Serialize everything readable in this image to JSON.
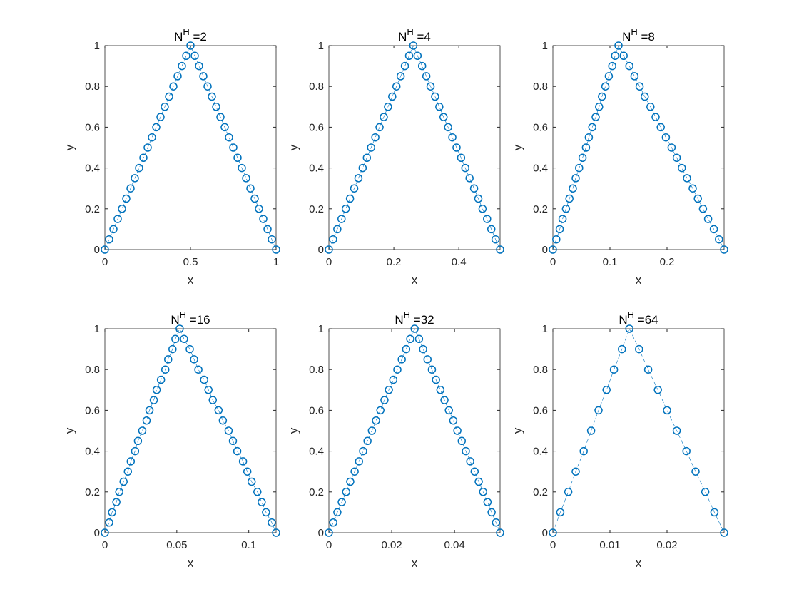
{
  "chart_data": [
    {
      "type": "line",
      "title": [
        "N",
        "H",
        " =2"
      ],
      "xlabel": "x",
      "ylabel": "y",
      "color": "#0072bd",
      "x": [
        0,
        0.025,
        0.05,
        0.075,
        0.1,
        0.125,
        0.15,
        0.175,
        0.2,
        0.225,
        0.25,
        0.275,
        0.3,
        0.325,
        0.35,
        0.375,
        0.4,
        0.425,
        0.45,
        0.475,
        0.5,
        0.525,
        0.55,
        0.575,
        0.6,
        0.625,
        0.65,
        0.675,
        0.7,
        0.725,
        0.75,
        0.775,
        0.8,
        0.825,
        0.85,
        0.875,
        0.9,
        0.925,
        0.95,
        0.975,
        1
      ],
      "values": [
        0,
        0.05,
        0.1,
        0.15,
        0.2,
        0.25,
        0.3,
        0.35,
        0.4,
        0.45,
        0.5,
        0.55,
        0.6,
        0.65,
        0.7,
        0.75,
        0.8,
        0.85,
        0.9,
        0.95,
        1,
        0.95,
        0.9,
        0.85,
        0.8,
        0.75,
        0.7,
        0.65,
        0.6,
        0.55,
        0.5,
        0.45,
        0.4,
        0.35,
        0.3,
        0.25,
        0.2,
        0.15,
        0.1,
        0.05,
        0
      ],
      "xlim": [
        0,
        1
      ],
      "ylim": [
        0,
        1
      ],
      "xticks": [
        0,
        0.5,
        1
      ],
      "yticks": [
        0,
        0.2,
        0.4,
        0.6,
        0.8,
        1
      ]
    },
    {
      "type": "line",
      "title": [
        "N",
        "H",
        " =4"
      ],
      "xlabel": "x",
      "ylabel": "y",
      "color": "#0072bd",
      "x": [
        0,
        0.013,
        0.026,
        0.039,
        0.052,
        0.065,
        0.078,
        0.091,
        0.104,
        0.117,
        0.13,
        0.143,
        0.156,
        0.169,
        0.182,
        0.195,
        0.208,
        0.221,
        0.234,
        0.247,
        0.26,
        0.273,
        0.287,
        0.3,
        0.313,
        0.327,
        0.34,
        0.353,
        0.367,
        0.38,
        0.393,
        0.407,
        0.42,
        0.433,
        0.447,
        0.46,
        0.473,
        0.487,
        0.5,
        0.513,
        0.527
      ],
      "values": [
        0,
        0.05,
        0.1,
        0.15,
        0.2,
        0.25,
        0.3,
        0.35,
        0.4,
        0.45,
        0.5,
        0.55,
        0.6,
        0.65,
        0.7,
        0.75,
        0.8,
        0.85,
        0.9,
        0.95,
        1,
        0.95,
        0.9,
        0.85,
        0.8,
        0.75,
        0.7,
        0.65,
        0.6,
        0.55,
        0.5,
        0.45,
        0.4,
        0.35,
        0.3,
        0.25,
        0.2,
        0.15,
        0.1,
        0.05,
        0
      ],
      "xlim": [
        0,
        0.527
      ],
      "ylim": [
        0,
        1
      ],
      "xticks": [
        0,
        0.2,
        0.4
      ],
      "yticks": [
        0,
        0.2,
        0.4,
        0.6,
        0.8,
        1
      ]
    },
    {
      "type": "line",
      "title": [
        "N",
        "H",
        " =8"
      ],
      "xlabel": "x",
      "ylabel": "y",
      "color": "#0072bd",
      "x": [
        0,
        0.006,
        0.012,
        0.017,
        0.023,
        0.029,
        0.035,
        0.04,
        0.046,
        0.052,
        0.058,
        0.063,
        0.069,
        0.075,
        0.081,
        0.086,
        0.092,
        0.098,
        0.104,
        0.109,
        0.115,
        0.124,
        0.134,
        0.143,
        0.152,
        0.161,
        0.171,
        0.18,
        0.189,
        0.198,
        0.208,
        0.217,
        0.226,
        0.235,
        0.245,
        0.254,
        0.263,
        0.272,
        0.282,
        0.291,
        0.3
      ],
      "values": [
        0,
        0.05,
        0.1,
        0.15,
        0.2,
        0.25,
        0.3,
        0.35,
        0.4,
        0.45,
        0.5,
        0.55,
        0.6,
        0.65,
        0.7,
        0.75,
        0.8,
        0.85,
        0.9,
        0.95,
        1,
        0.95,
        0.9,
        0.85,
        0.8,
        0.75,
        0.7,
        0.65,
        0.6,
        0.55,
        0.5,
        0.45,
        0.4,
        0.35,
        0.3,
        0.25,
        0.2,
        0.15,
        0.1,
        0.05,
        0
      ],
      "xlim": [
        0,
        0.3
      ],
      "ylim": [
        0,
        1
      ],
      "xticks": [
        0,
        0.1,
        0.2
      ],
      "yticks": [
        0,
        0.2,
        0.4,
        0.6,
        0.8,
        1
      ]
    },
    {
      "type": "line",
      "title": [
        "N",
        "H",
        " =16"
      ],
      "xlabel": "x",
      "ylabel": "y",
      "color": "#0072bd",
      "x": [
        0,
        0.003,
        0.005,
        0.008,
        0.01,
        0.013,
        0.016,
        0.018,
        0.021,
        0.023,
        0.026,
        0.029,
        0.031,
        0.034,
        0.036,
        0.039,
        0.042,
        0.044,
        0.047,
        0.049,
        0.052,
        0.055,
        0.059,
        0.062,
        0.065,
        0.069,
        0.072,
        0.075,
        0.079,
        0.082,
        0.086,
        0.089,
        0.092,
        0.096,
        0.099,
        0.102,
        0.106,
        0.109,
        0.112,
        0.116,
        0.119
      ],
      "values": [
        0,
        0.05,
        0.1,
        0.15,
        0.2,
        0.25,
        0.3,
        0.35,
        0.4,
        0.45,
        0.5,
        0.55,
        0.6,
        0.65,
        0.7,
        0.75,
        0.8,
        0.85,
        0.9,
        0.95,
        1,
        0.95,
        0.9,
        0.85,
        0.8,
        0.75,
        0.7,
        0.65,
        0.6,
        0.55,
        0.5,
        0.45,
        0.4,
        0.35,
        0.3,
        0.25,
        0.2,
        0.15,
        0.1,
        0.05,
        0
      ],
      "xlim": [
        0,
        0.119
      ],
      "ylim": [
        0,
        1
      ],
      "xticks": [
        0,
        0.05,
        0.1
      ],
      "yticks": [
        0,
        0.2,
        0.4,
        0.6,
        0.8,
        1
      ]
    },
    {
      "type": "line",
      "title": [
        "N",
        "H",
        " =32"
      ],
      "xlabel": "x",
      "ylabel": "y",
      "color": "#0072bd",
      "x": [
        0,
        0.0014,
        0.0027,
        0.0041,
        0.0055,
        0.0068,
        0.0082,
        0.0096,
        0.0109,
        0.0123,
        0.0137,
        0.015,
        0.0164,
        0.0177,
        0.0191,
        0.0205,
        0.0218,
        0.0232,
        0.0246,
        0.0259,
        0.0273,
        0.0287,
        0.03,
        0.0314,
        0.0328,
        0.0341,
        0.0355,
        0.0368,
        0.0382,
        0.0396,
        0.0409,
        0.0423,
        0.0436,
        0.045,
        0.0464,
        0.0477,
        0.0491,
        0.0505,
        0.0518,
        0.0532,
        0.0545
      ],
      "values": [
        0,
        0.05,
        0.1,
        0.15,
        0.2,
        0.25,
        0.3,
        0.35,
        0.4,
        0.45,
        0.5,
        0.55,
        0.6,
        0.65,
        0.7,
        0.75,
        0.8,
        0.85,
        0.9,
        0.95,
        1,
        0.95,
        0.9,
        0.85,
        0.8,
        0.75,
        0.7,
        0.65,
        0.6,
        0.55,
        0.5,
        0.45,
        0.4,
        0.35,
        0.3,
        0.25,
        0.2,
        0.15,
        0.1,
        0.05,
        0
      ],
      "xlim": [
        0,
        0.0545
      ],
      "ylim": [
        0,
        1
      ],
      "xticks": [
        0,
        0.02,
        0.04
      ],
      "yticks": [
        0,
        0.2,
        0.4,
        0.6,
        0.8,
        1
      ]
    },
    {
      "type": "line",
      "title": [
        "N",
        "H",
        " =64"
      ],
      "xlabel": "x",
      "ylabel": "y",
      "color": "#0072bd",
      "x": [
        0,
        0.0013,
        0.0027,
        0.004,
        0.0054,
        0.0067,
        0.008,
        0.0094,
        0.0107,
        0.0121,
        0.0134,
        0.0151,
        0.0167,
        0.0184,
        0.02,
        0.0217,
        0.0234,
        0.025,
        0.0267,
        0.0283,
        0.03
      ],
      "values": [
        0,
        0.1,
        0.2,
        0.3,
        0.4,
        0.5,
        0.6,
        0.7,
        0.8,
        0.9,
        1,
        0.9,
        0.8,
        0.7,
        0.6,
        0.5,
        0.4,
        0.3,
        0.2,
        0.1,
        0
      ],
      "xlim": [
        0,
        0.03
      ],
      "ylim": [
        0,
        1
      ],
      "xticks": [
        0,
        0.01,
        0.02
      ],
      "yticks": [
        0,
        0.2,
        0.4,
        0.6,
        0.8,
        1
      ]
    }
  ]
}
